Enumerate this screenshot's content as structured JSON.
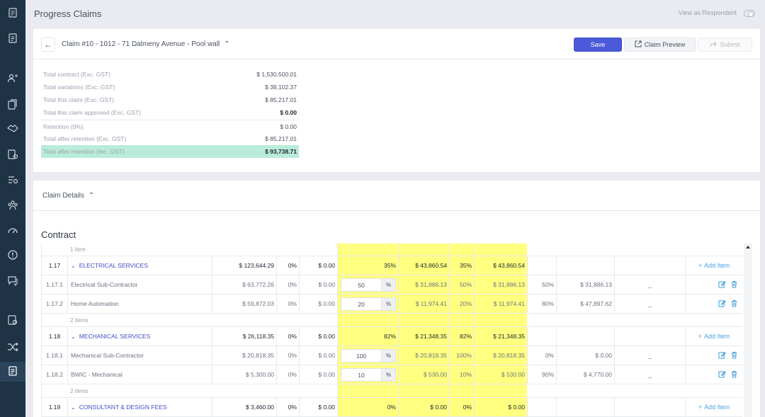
{
  "sidebar": {
    "icons": [
      "document-list-icon",
      "document-list-icon",
      "users-icon",
      "documents-icon",
      "handshake-icon",
      "document-settings-icon",
      "list-settings-icon",
      "team-icon",
      "speedometer-icon",
      "alert-icon",
      "messages-icon",
      "certificate-icon",
      "shuffle-icon",
      "claims-icon"
    ]
  },
  "header": {
    "title": "Progress Claims",
    "respondent_label": "View as Respondent"
  },
  "claim": {
    "title": "Claim #10 - 1012 - 71 Dalmeny Avenue - Pool wall",
    "save_label": "Save",
    "preview_label": "Claim Preview",
    "submit_label": "Submit"
  },
  "summary": [
    {
      "label": "Total contract (Exc. GST)",
      "value": "$ 1,530,500.01"
    },
    {
      "label": "Total variations (Exc. GST)",
      "value": "$ 38,102.37"
    },
    {
      "label": "Total this claim (Exc. GST)",
      "value": "$ 85,217.01"
    },
    {
      "label": "Total this claim approved (Exc. GST)",
      "value": "$ 0.00"
    },
    {
      "label": "Retention (0%)",
      "value": "$ 0.00"
    },
    {
      "label": "Total after retention (Exc. GST)",
      "value": "$ 85,217.01"
    },
    {
      "label": "Total after retention (Inc. GST)",
      "value": "$ 93,738.71"
    }
  ],
  "details": {
    "title": "Claim Details",
    "contract_title": "Contract",
    "add_item_label": "Add Item"
  },
  "rows": [
    {
      "type": "count",
      "text": "1 item"
    },
    {
      "type": "group",
      "no": "1.17",
      "name": "ELECTRICAL SERVICES",
      "value": "$ 123,644.29",
      "prev_pct": "0%",
      "prev_amt": "$ 0.00",
      "claim_pct": "35%",
      "claim_amt": "$ 43,860.54",
      "appr_pct": "35%",
      "appr_amt": "$ 43,860.54"
    },
    {
      "type": "item",
      "no": "1.17.1",
      "name": "Electrical Sub-Contractor",
      "value": "$ 63,772.26",
      "prev_pct": "0%",
      "prev_amt": "$ 0.00",
      "input": "50",
      "claim_amt": "$ 31,886.13",
      "appr_pct": "50%",
      "appr_amt": "$ 31,886.13",
      "rem_pct": "50%",
      "rem_amt": "$ 31,886.13",
      "dash": "_"
    },
    {
      "type": "item",
      "no": "1.17.2",
      "name": "Home Automation",
      "value": "$ 59,872.03",
      "prev_pct": "0%",
      "prev_amt": "$ 0.00",
      "input": "20",
      "claim_amt": "$ 11,974.41",
      "appr_pct": "20%",
      "appr_amt": "$ 11,974.41",
      "rem_pct": "80%",
      "rem_amt": "$ 47,897.62",
      "dash": "_"
    },
    {
      "type": "count",
      "text": "2 items"
    },
    {
      "type": "group",
      "no": "1.18",
      "name": "MECHANICAL SERVICES",
      "value": "$ 26,118.35",
      "prev_pct": "0%",
      "prev_amt": "$ 0.00",
      "claim_pct": "82%",
      "claim_amt": "$ 21,348.35",
      "appr_pct": "82%",
      "appr_amt": "$ 21,348.35"
    },
    {
      "type": "item",
      "no": "1.18.1",
      "name": "Mechanical Sub-Contractor",
      "value": "$ 20,818.35",
      "prev_pct": "0%",
      "prev_amt": "$ 0.00",
      "input": "100",
      "claim_amt": "$ 20,818.35",
      "appr_pct": "100%",
      "appr_amt": "$ 20,818.35",
      "rem_pct": "0%",
      "rem_amt": "$ 0.00",
      "dash": "_"
    },
    {
      "type": "item",
      "no": "1.18.2",
      "name": "BWIC - Mechanical",
      "value": "$ 5,300.00",
      "prev_pct": "0%",
      "prev_amt": "$ 0.00",
      "input": "10",
      "claim_amt": "$ 530.00",
      "appr_pct": "10%",
      "appr_amt": "$ 530.00",
      "rem_pct": "90%",
      "rem_amt": "$ 4,770.00",
      "dash": "_"
    },
    {
      "type": "count",
      "text": "2 items"
    },
    {
      "type": "group",
      "no": "1.19",
      "name": "CONSULTANT & DESIGN FEES",
      "value": "$ 3,460.00",
      "prev_pct": "0%",
      "prev_amt": "$ 0.00",
      "claim_pct": "0%",
      "claim_amt": "$ 0.00",
      "appr_pct": "0%",
      "appr_amt": "$ 0.00"
    }
  ],
  "input_suffix": "%",
  "colors": {
    "accent": "#4a5ad8",
    "highlight": "#ffff80",
    "total_bg": "#b9ecd9",
    "sidebar": "#1f3346",
    "link": "#3e4fc9"
  }
}
